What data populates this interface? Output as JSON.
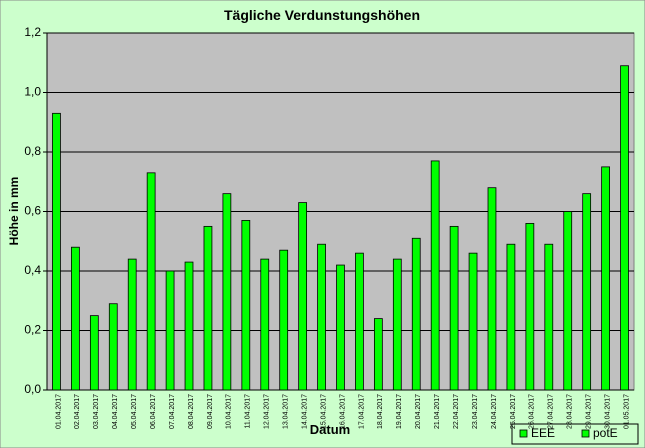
{
  "chart_data": {
    "type": "bar",
    "title": "Tägliche Verdunstungshöhen",
    "xlabel": "Datum",
    "ylabel": "Höhe in mm",
    "categories": [
      "01.04.2017",
      "02.04.2017",
      "03.04.2017",
      "04.04.2017",
      "05.04.2017",
      "06.04.2017",
      "07.04.2017",
      "08.04.2017",
      "09.04.2017",
      "10.04.2017",
      "11.04.2017",
      "12.04.2017",
      "13.04.2017",
      "14.04.2017",
      "15.04.2017",
      "16.04.2017",
      "17.04.2017",
      "18.04.2017",
      "19.04.2017",
      "20.04.2017",
      "21.04.2017",
      "22.04.2017",
      "23.04.2017",
      "24.04.2017",
      "25.04.2017",
      "26.04.2017",
      "27.04.2017",
      "28.04.2017",
      "29.04.2017",
      "30.04.2017",
      "01.05.2017"
    ],
    "series": [
      {
        "name": "EEE",
        "color": "#00ff00",
        "values": [
          null,
          null,
          null,
          null,
          null,
          null,
          null,
          null,
          null,
          null,
          null,
          null,
          null,
          null,
          null,
          null,
          null,
          null,
          null,
          null,
          null,
          null,
          null,
          null,
          null,
          null,
          null,
          null,
          null,
          null,
          null
        ]
      },
      {
        "name": "potE",
        "color": "#00ff00",
        "values": [
          0.93,
          0.48,
          0.25,
          0.29,
          0.44,
          0.73,
          0.4,
          0.43,
          0.55,
          0.66,
          0.57,
          0.44,
          0.47,
          0.63,
          0.49,
          0.42,
          0.46,
          0.24,
          0.44,
          0.51,
          0.77,
          0.55,
          0.46,
          0.68,
          0.49,
          0.56,
          0.49,
          0.6,
          0.66,
          0.75,
          1.09
        ]
      }
    ],
    "ylim": [
      0,
      1.2
    ],
    "yticks": [
      {
        "value": 0,
        "label": "0,0"
      },
      {
        "value": 0.2,
        "label": "0,2"
      },
      {
        "value": 0.4,
        "label": "0,4"
      },
      {
        "value": 0.6,
        "label": "0,6"
      },
      {
        "value": 0.8,
        "label": "0,8"
      },
      {
        "value": 1.0,
        "label": "1,0"
      },
      {
        "value": 1.2,
        "label": "1,2"
      }
    ],
    "grid": true,
    "legend": "bottom-right"
  }
}
